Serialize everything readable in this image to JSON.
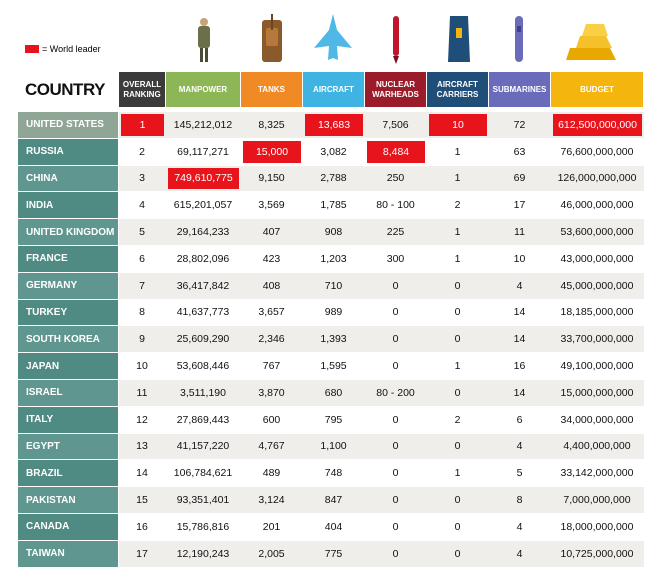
{
  "legend": {
    "label": "= World leader"
  },
  "table": {
    "columns": [
      "COUNTRY",
      "OVERALL RANKING",
      "MANPOWER",
      "TANKS",
      "AIRCRAFT",
      "NUCLEAR WARHEADS",
      "AIRCRAFT CARRIERS",
      "SUBMARINES",
      "BUDGET"
    ],
    "column_colors": [
      "#ffffff",
      "#3b3b3b",
      "#8db657",
      "#ef8a25",
      "#3fb4e2",
      "#9a1c2b",
      "#1f4e78",
      "#6b6bbb",
      "#f5b50f"
    ],
    "leader_color": "#e8141c",
    "rows": [
      [
        "UNITED STATES",
        "1",
        "145,212,012",
        "8,325",
        "13,683",
        "7,506",
        "10",
        "72",
        "612,500,000,000"
      ],
      [
        "RUSSIA",
        "2",
        "69,117,271",
        "15,000",
        "3,082",
        "8,484",
        "1",
        "63",
        "76,600,000,000"
      ],
      [
        "CHINA",
        "3",
        "749,610,775",
        "9,150",
        "2,788",
        "250",
        "1",
        "69",
        "126,000,000,000"
      ],
      [
        "INDIA",
        "4",
        "615,201,057",
        "3,569",
        "1,785",
        "80 - 100",
        "2",
        "17",
        "46,000,000,000"
      ],
      [
        "UNITED KINGDOM",
        "5",
        "29,164,233",
        "407",
        "908",
        "225",
        "1",
        "11",
        "53,600,000,000"
      ],
      [
        "FRANCE",
        "6",
        "28,802,096",
        "423",
        "1,203",
        "300",
        "1",
        "10",
        "43,000,000,000"
      ],
      [
        "GERMANY",
        "7",
        "36,417,842",
        "408",
        "710",
        "0",
        "0",
        "4",
        "45,000,000,000"
      ],
      [
        "TURKEY",
        "8",
        "41,637,773",
        "3,657",
        "989",
        "0",
        "0",
        "14",
        "18,185,000,000"
      ],
      [
        "SOUTH KOREA",
        "9",
        "25,609,290",
        "2,346",
        "1,393",
        "0",
        "0",
        "14",
        "33,700,000,000"
      ],
      [
        "JAPAN",
        "10",
        "53,608,446",
        "767",
        "1,595",
        "0",
        "1",
        "16",
        "49,100,000,000"
      ],
      [
        "ISRAEL",
        "11",
        "3,511,190",
        "3,870",
        "680",
        "80 - 200",
        "0",
        "14",
        "15,000,000,000"
      ],
      [
        "ITALY",
        "12",
        "27,869,443",
        "600",
        "795",
        "0",
        "2",
        "6",
        "34,000,000,000"
      ],
      [
        "EGYPT",
        "13",
        "41,157,220",
        "4,767",
        "1,100",
        "0",
        "0",
        "4",
        "4,400,000,000"
      ],
      [
        "BRAZIL",
        "14",
        "106,784,621",
        "489",
        "748",
        "0",
        "1",
        "5",
        "33,142,000,000"
      ],
      [
        "PAKISTAN",
        "15",
        "93,351,401",
        "3,124",
        "847",
        "0",
        "0",
        "8",
        "7,000,000,000"
      ],
      [
        "CANADA",
        "16",
        "15,786,816",
        "201",
        "404",
        "0",
        "0",
        "4",
        "18,000,000,000"
      ],
      [
        "TAIWAN",
        "17",
        "12,190,243",
        "2,005",
        "775",
        "0",
        "0",
        "4",
        "10,725,000,000"
      ]
    ],
    "world_leader_cells": [
      [
        1,
        4,
        6,
        8
      ],
      [
        3,
        5
      ],
      [
        2
      ],
      [],
      [],
      [],
      [],
      [],
      [],
      [],
      [],
      [],
      [],
      [],
      [],
      [],
      []
    ]
  }
}
